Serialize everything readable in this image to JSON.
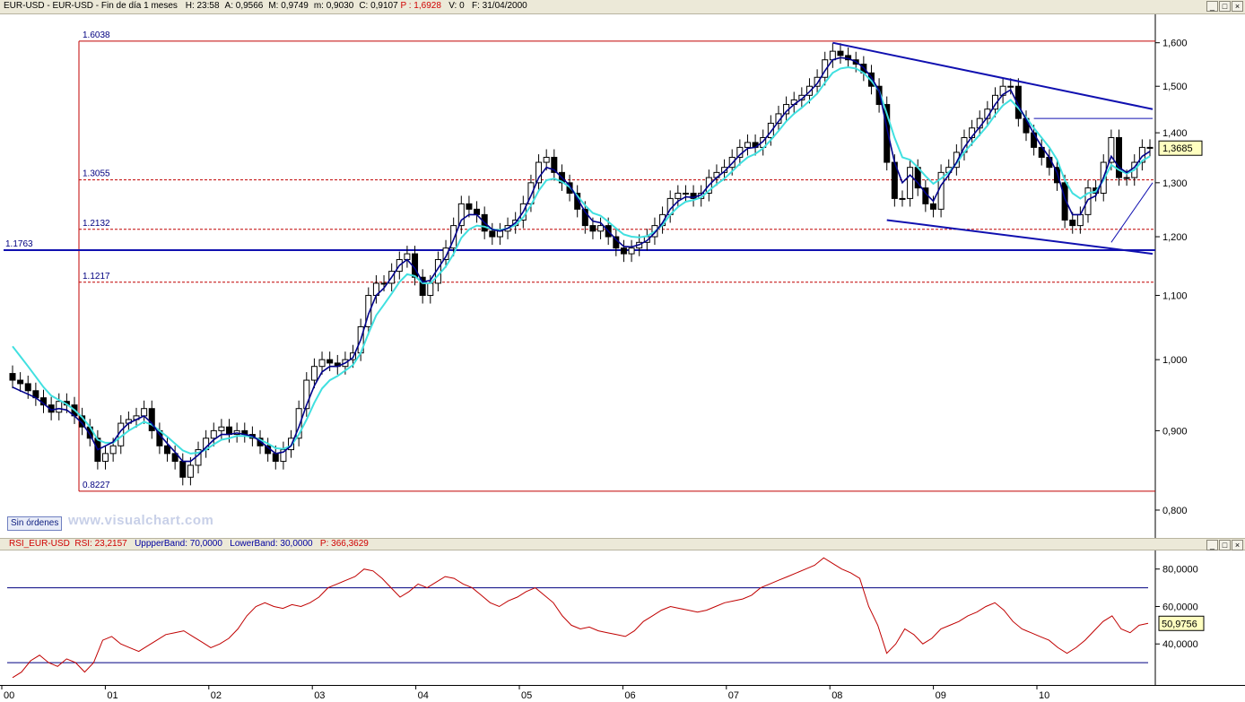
{
  "header": {
    "symbol": "EUR-USD - EUR-USD",
    "period": "Fin de día 1 meses",
    "fields": [
      {
        "label": "H:",
        "value": "23:58"
      },
      {
        "label": "A:",
        "value": "0,9566"
      },
      {
        "label": "M:",
        "value": "0,9749"
      },
      {
        "label": "m:",
        "value": "0,9030"
      },
      {
        "label": "C:",
        "value": "0,9107"
      }
    ],
    "p_field": "P : 1,6928",
    "v_field": "V: 0",
    "f_field": "F: 31/04/2000",
    "window_buttons": [
      "_",
      "□",
      "×"
    ]
  },
  "rsi_header": {
    "name": "RSI_EUR-USD",
    "rsi": "RSI: 23,2157",
    "upper": "UppperBand: 70,0000",
    "lower": "LowerBand: 30,0000",
    "p": "P: 366,3629",
    "window_buttons": [
      "_",
      "□",
      "×"
    ]
  },
  "orders_button": "Sin órdenes",
  "watermark": "www.visualchart.com",
  "colors": {
    "candle_up": "#ffffff",
    "candle_down": "#000000",
    "ma_fast": "#00008b",
    "ma_slow": "#40e0e0",
    "fib_lines": "#c00000",
    "trend_lines": "#1010b0",
    "rsi_line": "#c00000",
    "rsi_bands": "#000080"
  },
  "chart_data": [
    {
      "type": "candlestick",
      "x_tick_labels": [
        "00",
        "01",
        "02",
        "03",
        "04",
        "05",
        "06",
        "07",
        "08",
        "09",
        "10"
      ],
      "y_tick_labels": [
        "1,600",
        "1,500",
        "1,400",
        "1,300",
        "1,200",
        "1,100",
        "1,000",
        "0,900",
        "0,800"
      ],
      "y_ticks": [
        1.6,
        1.5,
        1.4,
        1.3,
        1.2,
        1.1,
        1.0,
        0.9,
        0.8
      ],
      "ylim": [
        0.78,
        1.66
      ],
      "y_scale": "log",
      "last_price_label": "1,3685",
      "closes": [
        0.97,
        0.965,
        0.955,
        0.945,
        0.935,
        0.925,
        0.94,
        0.935,
        0.92,
        0.905,
        0.89,
        0.86,
        0.87,
        0.88,
        0.91,
        0.915,
        0.92,
        0.93,
        0.9,
        0.88,
        0.87,
        0.86,
        0.84,
        0.855,
        0.875,
        0.89,
        0.9,
        0.905,
        0.895,
        0.9,
        0.895,
        0.89,
        0.88,
        0.87,
        0.86,
        0.875,
        0.89,
        0.93,
        0.97,
        0.99,
        1.0,
        0.995,
        0.99,
        1.0,
        1.01,
        1.05,
        1.1,
        1.12,
        1.12,
        1.14,
        1.16,
        1.17,
        1.13,
        1.1,
        1.12,
        1.16,
        1.18,
        1.22,
        1.26,
        1.25,
        1.24,
        1.21,
        1.2,
        1.21,
        1.22,
        1.23,
        1.26,
        1.3,
        1.34,
        1.35,
        1.32,
        1.3,
        1.28,
        1.25,
        1.22,
        1.21,
        1.22,
        1.2,
        1.18,
        1.17,
        1.18,
        1.19,
        1.2,
        1.22,
        1.24,
        1.27,
        1.28,
        1.28,
        1.27,
        1.28,
        1.31,
        1.32,
        1.33,
        1.35,
        1.37,
        1.38,
        1.37,
        1.39,
        1.42,
        1.44,
        1.46,
        1.47,
        1.48,
        1.5,
        1.52,
        1.56,
        1.58,
        1.57,
        1.56,
        1.55,
        1.53,
        1.5,
        1.46,
        1.34,
        1.27,
        1.27,
        1.33,
        1.29,
        1.26,
        1.25,
        1.32,
        1.33,
        1.36,
        1.39,
        1.41,
        1.43,
        1.45,
        1.48,
        1.5,
        1.5,
        1.43,
        1.4,
        1.37,
        1.35,
        1.33,
        1.3,
        1.23,
        1.22,
        1.24,
        1.29,
        1.28,
        1.34,
        1.39,
        1.31,
        1.31,
        1.34,
        1.37,
        1.3685
      ],
      "ma_fast": [
        0.96,
        0.955,
        0.95,
        0.945,
        0.937,
        0.928,
        0.93,
        0.928,
        0.92,
        0.91,
        0.895,
        0.875,
        0.88,
        0.885,
        0.9,
        0.91,
        0.915,
        0.92,
        0.91,
        0.895,
        0.883,
        0.872,
        0.86,
        0.86,
        0.868,
        0.878,
        0.888,
        0.895,
        0.895,
        0.897,
        0.895,
        0.893,
        0.886,
        0.878,
        0.87,
        0.872,
        0.88,
        0.905,
        0.935,
        0.962,
        0.982,
        0.99,
        0.99,
        0.995,
        1.003,
        1.03,
        1.07,
        1.1,
        1.112,
        1.13,
        1.15,
        1.16,
        1.145,
        1.122,
        1.125,
        1.145,
        1.165,
        1.195,
        1.23,
        1.24,
        1.24,
        1.225,
        1.213,
        1.21,
        1.215,
        1.225,
        1.245,
        1.275,
        1.31,
        1.33,
        1.325,
        1.31,
        1.295,
        1.27,
        1.245,
        1.228,
        1.225,
        1.21,
        1.195,
        1.183,
        1.182,
        1.186,
        1.193,
        1.207,
        1.225,
        1.25,
        1.265,
        1.273,
        1.272,
        1.277,
        1.295,
        1.31,
        1.322,
        1.338,
        1.355,
        1.368,
        1.37,
        1.382,
        1.402,
        1.424,
        1.445,
        1.46,
        1.472,
        1.488,
        1.506,
        1.535,
        1.56,
        1.565,
        1.563,
        1.556,
        1.542,
        1.52,
        1.49,
        1.41,
        1.34,
        1.3,
        1.315,
        1.3,
        1.28,
        1.265,
        1.295,
        1.315,
        1.34,
        1.37,
        1.392,
        1.412,
        1.433,
        1.46,
        1.482,
        1.492,
        1.458,
        1.428,
        1.398,
        1.372,
        1.35,
        1.32,
        1.27,
        1.24,
        1.24,
        1.268,
        1.275,
        1.31,
        1.352,
        1.33,
        1.32,
        1.33,
        1.352,
        1.362
      ],
      "ma_slow": [
        1.02,
        1.005,
        0.99,
        0.975,
        0.96,
        0.948,
        0.942,
        0.936,
        0.928,
        0.918,
        0.905,
        0.888,
        0.884,
        0.884,
        0.892,
        0.9,
        0.906,
        0.912,
        0.908,
        0.9,
        0.892,
        0.883,
        0.874,
        0.87,
        0.871,
        0.875,
        0.882,
        0.888,
        0.89,
        0.893,
        0.893,
        0.892,
        0.888,
        0.883,
        0.877,
        0.876,
        0.88,
        0.895,
        0.915,
        0.938,
        0.958,
        0.97,
        0.976,
        0.984,
        0.992,
        1.01,
        1.04,
        1.068,
        1.085,
        1.103,
        1.122,
        1.135,
        1.132,
        1.12,
        1.12,
        1.133,
        1.148,
        1.17,
        1.198,
        1.213,
        1.22,
        1.218,
        1.213,
        1.212,
        1.215,
        1.221,
        1.235,
        1.257,
        1.285,
        1.305,
        1.308,
        1.302,
        1.292,
        1.275,
        1.257,
        1.243,
        1.238,
        1.227,
        1.215,
        1.204,
        1.2,
        1.199,
        1.201,
        1.209,
        1.221,
        1.24,
        1.254,
        1.264,
        1.267,
        1.272,
        1.285,
        1.297,
        1.308,
        1.322,
        1.337,
        1.35,
        1.357,
        1.368,
        1.385,
        1.404,
        1.424,
        1.44,
        1.453,
        1.468,
        1.484,
        1.508,
        1.53,
        1.54,
        1.543,
        1.54,
        1.53,
        1.512,
        1.49,
        1.44,
        1.39,
        1.35,
        1.345,
        1.33,
        1.313,
        1.298,
        1.308,
        1.32,
        1.338,
        1.36,
        1.378,
        1.396,
        1.415,
        1.438,
        1.458,
        1.47,
        1.452,
        1.432,
        1.41,
        1.39,
        1.37,
        1.345,
        1.305,
        1.28,
        1.27,
        1.28,
        1.283,
        1.305,
        1.335,
        1.325,
        1.318,
        1.325,
        1.343,
        1.352
      ],
      "horizontal_levels": [
        {
          "label": "1.6038",
          "value": 1.6038
        },
        {
          "label": "1.3055",
          "value": 1.3055
        },
        {
          "label": "1.2132",
          "value": 1.2132
        },
        {
          "label": "1.1763",
          "value": 1.1763
        },
        {
          "label": "1.1217",
          "value": 1.1217
        },
        {
          "label": "0.8227",
          "value": 0.8227
        }
      ],
      "grid": false
    },
    {
      "type": "line",
      "y_tick_labels": [
        "80,0000",
        "60,0000",
        "40,0000"
      ],
      "y_ticks": [
        80,
        60,
        40
      ],
      "ylim": [
        20,
        88
      ],
      "upper_band": 70,
      "lower_band": 30,
      "last_value_label": "50,9756",
      "values": [
        22,
        25,
        31,
        34,
        30,
        28,
        32,
        30,
        25,
        30,
        42,
        44,
        40,
        38,
        36,
        39,
        42,
        45,
        46,
        47,
        44,
        41,
        38,
        40,
        43,
        48,
        55,
        60,
        62,
        60,
        59,
        61,
        60,
        62,
        65,
        70,
        72,
        74,
        76,
        80,
        79,
        75,
        70,
        65,
        68,
        72,
        70,
        73,
        76,
        75,
        72,
        70,
        66,
        62,
        60,
        63,
        65,
        68,
        70,
        66,
        62,
        55,
        50,
        48,
        49,
        47,
        46,
        45,
        44,
        47,
        52,
        55,
        58,
        60,
        59,
        58,
        57,
        58,
        60,
        62,
        63,
        64,
        66,
        70,
        72,
        74,
        76,
        78,
        80,
        82,
        86,
        83,
        80,
        78,
        75,
        60,
        50,
        35,
        40,
        48,
        45,
        40,
        43,
        48,
        50,
        52,
        55,
        57,
        60,
        62,
        58,
        52,
        48,
        46,
        44,
        42,
        38,
        35,
        38,
        42,
        47,
        52,
        55,
        48,
        46,
        50,
        51
      ]
    }
  ]
}
